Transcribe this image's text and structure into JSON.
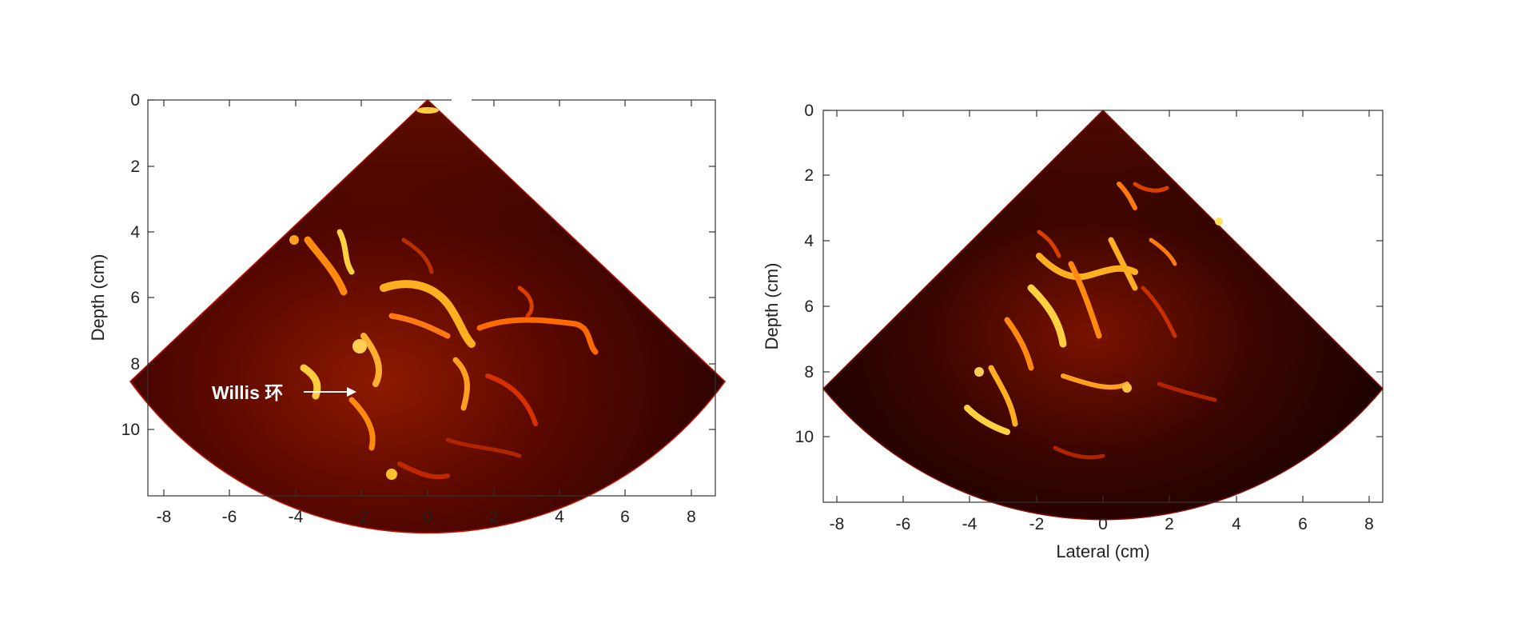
{
  "panels": [
    {
      "id": "left",
      "ylabel": "Depth (cm)",
      "xlabel": "",
      "x_ticks": [
        "-8",
        "-6",
        "-4",
        "-2",
        "0",
        "2",
        "4",
        "6",
        "8"
      ],
      "y_ticks": [
        "0",
        "2",
        "4",
        "6",
        "8",
        "10"
      ],
      "annotation": "Willis 环"
    },
    {
      "id": "right",
      "ylabel": "Depth (cm)",
      "xlabel": "Lateral (cm)",
      "x_ticks": [
        "-8",
        "-6",
        "-4",
        "-2",
        "0",
        "2",
        "4",
        "6",
        "8"
      ],
      "y_ticks": [
        "0",
        "2",
        "4",
        "6",
        "8",
        "10"
      ],
      "annotation": ""
    }
  ],
  "colors": {
    "background": "#ffffff",
    "image_dark": "#1a0200",
    "image_mid": "#8b0a00",
    "image_hot": "#ff6a00",
    "image_bright": "#ffe066",
    "axis": "#333333",
    "annotation_text": "#ffffff"
  }
}
